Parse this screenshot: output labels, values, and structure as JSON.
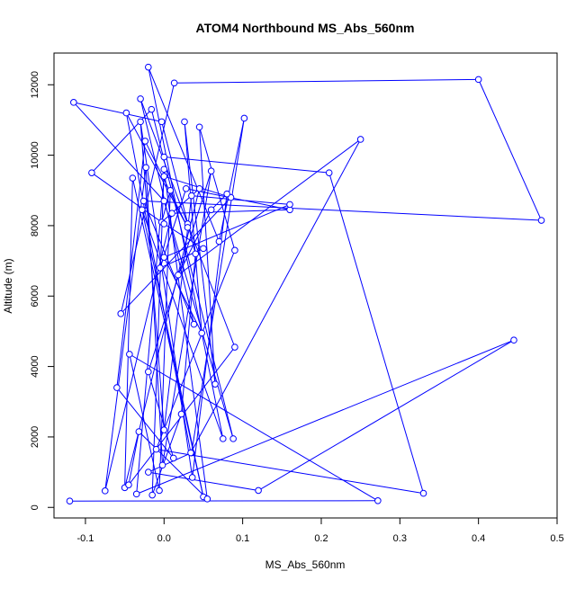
{
  "chart_data": {
    "type": "line",
    "title": "ATOM4 Northbound MS_Abs_560nm",
    "xlabel": "MS_Abs_560nm",
    "ylabel": "Altitude (m)",
    "xlim": [
      -0.14,
      0.5
    ],
    "ylim": [
      -300,
      12900
    ],
    "x_ticks": [
      -0.1,
      0.0,
      0.1,
      0.2,
      0.3,
      0.4,
      0.5
    ],
    "x_tick_labels": [
      "-0.1",
      "0.0",
      "0.1",
      "0.2",
      "0.3",
      "0.4",
      "0.5"
    ],
    "y_ticks": [
      0,
      2000,
      4000,
      6000,
      8000,
      10000,
      12000
    ],
    "y_tick_labels": [
      "0",
      "2000",
      "4000",
      "6000",
      "8000",
      "10000",
      "12000"
    ],
    "grid": false,
    "legend": "none",
    "series_color": "#0000ff",
    "marker": "open-circle",
    "series": [
      {
        "values_xy": [
          [
            -0.12,
            180
          ],
          [
            0.272,
            190
          ],
          [
            -0.044,
            4350
          ],
          [
            -0.006,
            480
          ],
          [
            0.008,
            9000
          ],
          [
            -0.003,
            8100
          ],
          [
            0.045,
            9050
          ],
          [
            -0.05,
            560
          ],
          [
            -0.04,
            9350
          ],
          [
            0.05,
            300
          ],
          [
            -0.028,
            8450
          ],
          [
            0.075,
            1950
          ],
          [
            -0.02,
            12500
          ],
          [
            0.07,
            7550
          ],
          [
            0.102,
            11050
          ],
          [
            0.035,
            1550
          ],
          [
            -0.02,
            1000
          ],
          [
            0.12,
            480
          ],
          [
            0.445,
            4750
          ],
          [
            -0.035,
            380
          ],
          [
            0.0,
            9400
          ],
          [
            0.085,
            8800
          ],
          [
            -0.055,
            5500
          ],
          [
            0.013,
            12050
          ],
          [
            0.4,
            12150
          ],
          [
            0.48,
            8150
          ],
          [
            -0.026,
            8700
          ],
          [
            0.038,
            5200
          ],
          [
            -0.03,
            11600
          ],
          [
            0.03,
            8050
          ],
          [
            0.09,
            4550
          ],
          [
            -0.045,
            640
          ],
          [
            -0.032,
            2150
          ],
          [
            0.055,
            240
          ],
          [
            0.0,
            9600
          ],
          [
            -0.015,
            350
          ],
          [
            0.022,
            2650
          ],
          [
            0.04,
            7200
          ],
          [
            -0.003,
            10950
          ],
          [
            -0.115,
            11500
          ],
          [
            0.0,
            8700
          ],
          [
            0.088,
            1950
          ],
          [
            -0.016,
            11300
          ],
          [
            -0.092,
            9500
          ],
          [
            0.0,
            8050
          ],
          [
            0.05,
            7350
          ],
          [
            -0.005,
            6800
          ],
          [
            0.028,
            9050
          ],
          [
            0.16,
            8450
          ],
          [
            0.01,
            8350
          ],
          [
            -0.075,
            470
          ],
          [
            -0.023,
            9650
          ],
          [
            -0.002,
            1200
          ],
          [
            0.06,
            9550
          ],
          [
            -0.02,
            3850
          ],
          [
            0.012,
            1400
          ],
          [
            -0.06,
            3400
          ],
          [
            -0.024,
            10400
          ],
          [
            0.03,
            7950
          ],
          [
            -0.048,
            11200
          ],
          [
            0.034,
            1550
          ],
          [
            0.25,
            10450
          ],
          [
            0.018,
            6600
          ],
          [
            0.06,
            8450
          ],
          [
            0.08,
            8900
          ],
          [
            0.036,
            850
          ],
          [
            -0.03,
            10950
          ],
          [
            0.0,
            2200
          ],
          [
            0.035,
            8850
          ],
          [
            0.16,
            8600
          ],
          [
            0.0,
            7100
          ],
          [
            0.048,
            4950
          ],
          [
            0.026,
            10950
          ],
          [
            0.065,
            3500
          ],
          [
            0.045,
            10800
          ],
          [
            0.09,
            7300
          ],
          [
            -0.01,
            1650
          ],
          [
            0.33,
            400
          ],
          [
            0.21,
            9500
          ],
          [
            0.0,
            9950
          ]
        ]
      }
    ]
  }
}
